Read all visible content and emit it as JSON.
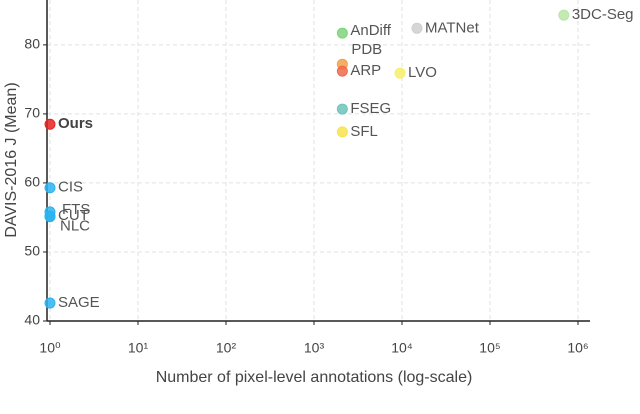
{
  "chart_data": {
    "type": "scatter",
    "xlabel": "Number of pixel-level annotations (log-scale)",
    "ylabel": "DAVIS-2016 J (Mean)",
    "xscale": "log",
    "grid": true,
    "xlim": [
      1,
      1000000
    ],
    "xticks": [
      {
        "value": 1,
        "label": "10⁰"
      },
      {
        "value": 10,
        "label": "10¹"
      },
      {
        "value": 100,
        "label": "10²"
      },
      {
        "value": 1000,
        "label": "10³"
      },
      {
        "value": 10000,
        "label": "10⁴"
      },
      {
        "value": 100000,
        "label": "10⁵"
      },
      {
        "value": 1000000,
        "label": "10⁶"
      }
    ],
    "ylim": [
      40,
      86.5
    ],
    "yticks": [
      40,
      50,
      60,
      70,
      80
    ],
    "series": [
      {
        "name": "Ours",
        "color": "#e8231e",
        "x": [
          1
        ],
        "values": [
          68.5
        ]
      },
      {
        "name": "CIS",
        "color": "#2bb3f0",
        "x": [
          1
        ],
        "values": [
          59.3
        ]
      },
      {
        "name": "FTS",
        "color": "#2bb3f0",
        "x": [
          1
        ],
        "values": [
          55.8
        ]
      },
      {
        "name": "CUT",
        "color": "#2bb3f0",
        "x": [
          1
        ],
        "values": [
          55.2
        ]
      },
      {
        "name": "NLC",
        "color": "#2bb3f0",
        "x": [
          1
        ],
        "values": [
          55.1
        ]
      },
      {
        "name": "SAGE",
        "color": "#2bb3f0",
        "x": [
          1
        ],
        "values": [
          42.6
        ]
      },
      {
        "name": "AnDiff",
        "color": "#7ed37a",
        "x": [
          2100
        ],
        "values": [
          81.7
        ]
      },
      {
        "name": "PDB",
        "color": "#f5a04a",
        "x": [
          2100
        ],
        "values": [
          77.2
        ]
      },
      {
        "name": "ARP",
        "color": "#ef6a4c",
        "x": [
          2100
        ],
        "values": [
          76.2
        ]
      },
      {
        "name": "FSEG",
        "color": "#6cc4b8",
        "x": [
          2100
        ],
        "values": [
          70.7
        ]
      },
      {
        "name": "SFL",
        "color": "#f7e34f",
        "x": [
          2100
        ],
        "values": [
          67.4
        ]
      },
      {
        "name": "LVO",
        "color": "#f7ef6a",
        "x": [
          9500
        ],
        "values": [
          75.9
        ]
      },
      {
        "name": "MATNet",
        "color": "#cfcfcf",
        "x": [
          14800
        ],
        "values": [
          82.4
        ]
      },
      {
        "name": "3DC-Seg",
        "color": "#b8e6a6",
        "x": [
          690000
        ],
        "values": [
          84.3
        ]
      }
    ]
  }
}
